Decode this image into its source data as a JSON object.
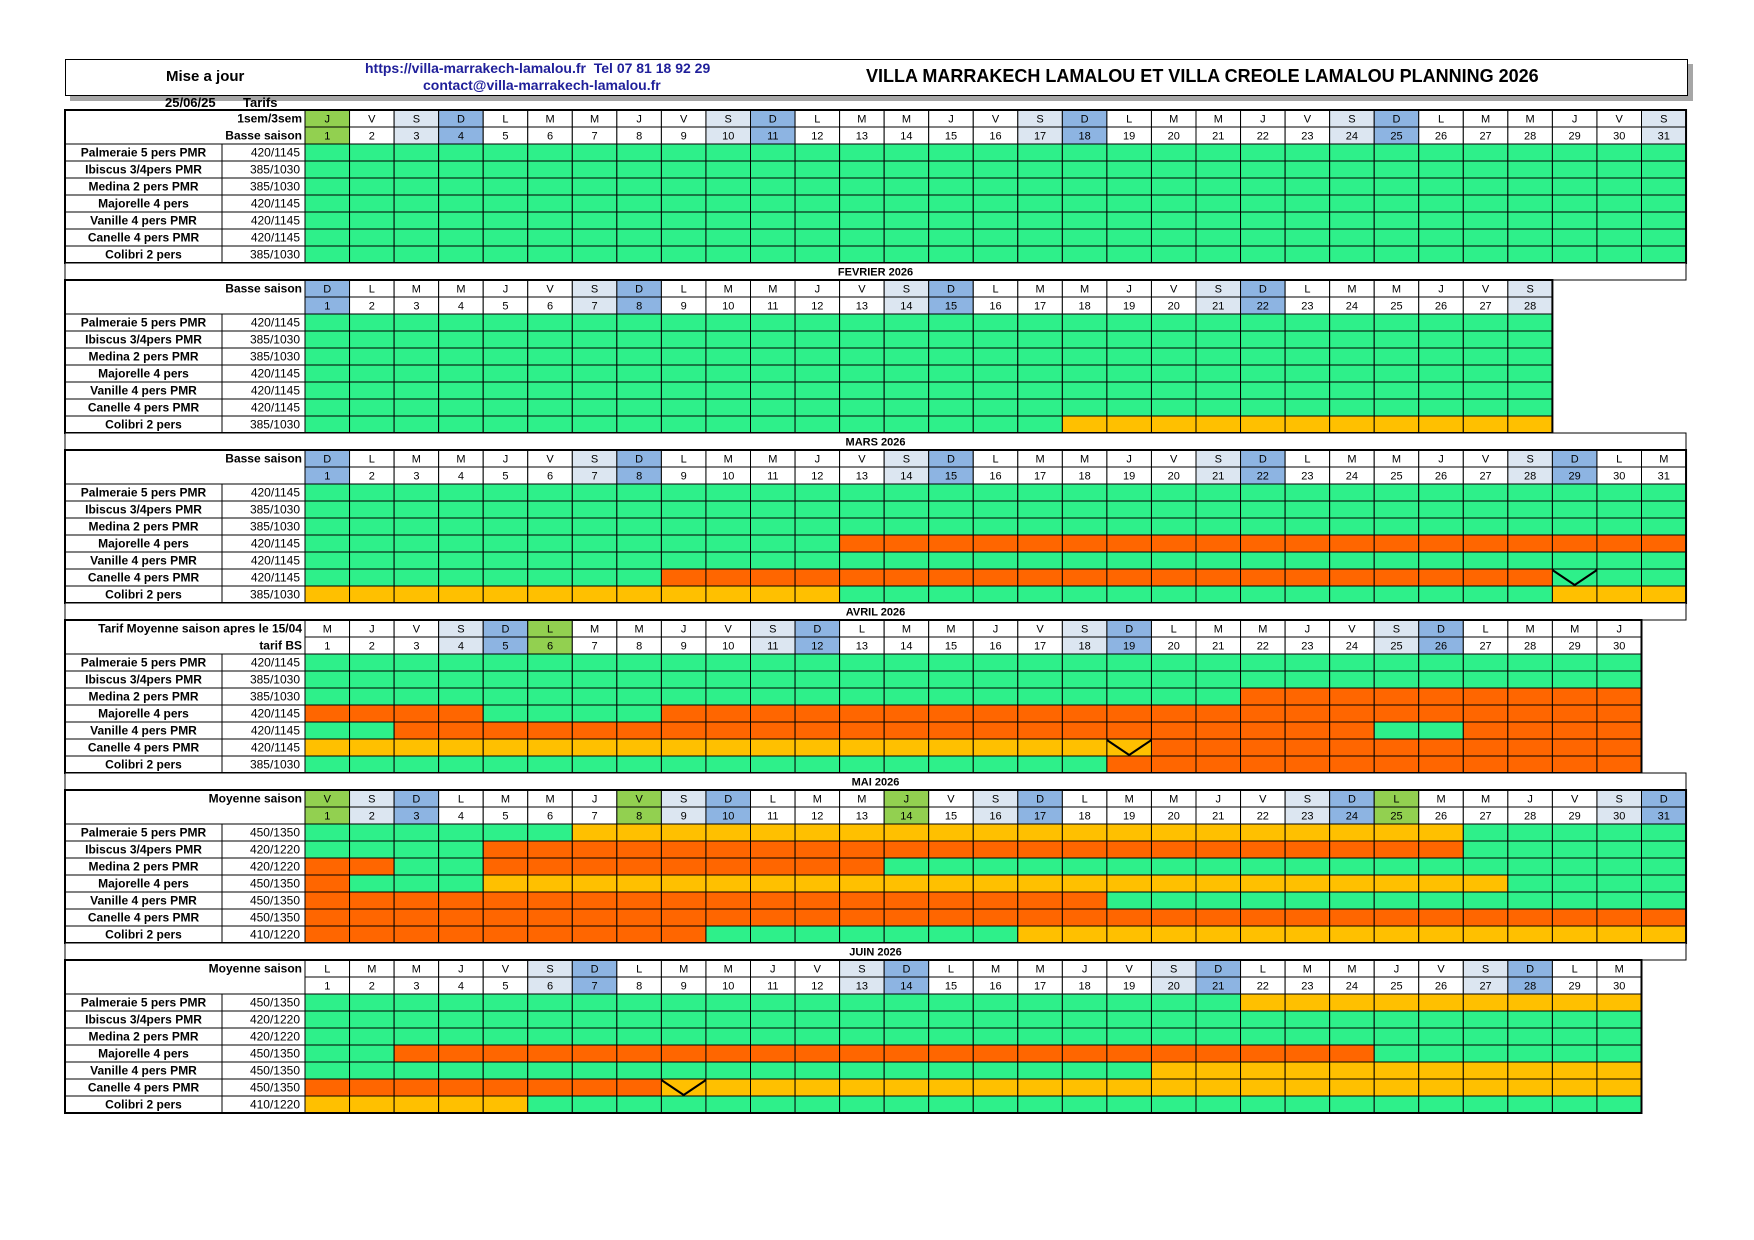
{
  "header": {
    "update_label": "Mise a jour",
    "update_date": "25/06/25",
    "tarifs_label": "Tarifs",
    "url": "https://villa-marrakech-lamalou.fr",
    "tel": "Tel 07 81 18 92 29",
    "email": "contact@villa-marrakech-lamalou.fr",
    "title": "VILLA MARRAKECH LAMALOU ET VILLA CREOLE LAMALOU PLANNING 2026"
  },
  "legend_colors": {
    "free": "#2ef08a",
    "booked_orange": "#ff6600",
    "booked_yellow": "#ffc000",
    "sunday": "#8db4e2",
    "saturday": "#dce6f1",
    "holiday": "#92d050"
  },
  "months": [
    {
      "title": "",
      "label1": "1sem/3sem",
      "label2": "Basse saison",
      "start_weekday": 3,
      "days": 31,
      "holidays": [
        1
      ],
      "rooms": [
        {
          "name": "Palmeraie 5 pers PMR",
          "price": "420/1145",
          "cells": "GGGGGGGGGGGGGGGGGGGGGGGGGGGGGGG"
        },
        {
          "name": "Ibiscus 3/4pers PMR",
          "price": "385/1030",
          "cells": "GGGGGGGGGGGGGGGGGGGGGGGGGGGGGGG"
        },
        {
          "name": "Medina 2 pers PMR",
          "price": "385/1030",
          "cells": "GGGGGGGGGGGGGGGGGGGGGGGGGGGGGGG"
        },
        {
          "name": "Majorelle 4 pers",
          "price": "420/1145",
          "cells": "GGGGGGGGGGGGGGGGGGGGGGGGGGGGGGG"
        },
        {
          "name": "Vanille 4 pers PMR",
          "price": "420/1145",
          "cells": "GGGGGGGGGGGGGGGGGGGGGGGGGGGGGGG"
        },
        {
          "name": "Canelle 4 pers PMR",
          "price": "420/1145",
          "cells": "GGGGGGGGGGGGGGGGGGGGGGGGGGGGGGG"
        },
        {
          "name": "Colibri 2 pers",
          "price": "385/1030",
          "cells": "GGGGGGGGGGGGGGGGGGGGGGGGGGGGGGG"
        }
      ]
    },
    {
      "title": "FEVRIER 2026",
      "label1": "Basse saison",
      "label2": "",
      "start_weekday": 6,
      "days": 28,
      "holidays": [],
      "rooms": [
        {
          "name": "Palmeraie 5 pers PMR",
          "price": "420/1145",
          "cells": "GGGGGGGGGGGGGGGGGGGGGGGGGGGG"
        },
        {
          "name": "Ibiscus 3/4pers PMR",
          "price": "385/1030",
          "cells": "GGGGGGGGGGGGGGGGGGGGGGGGGGGG"
        },
        {
          "name": "Medina 2 pers PMR",
          "price": "385/1030",
          "cells": "GGGGGGGGGGGGGGGGGGGGGGGGGGGG"
        },
        {
          "name": "Majorelle 4 pers",
          "price": "420/1145",
          "cells": "GGGGGGGGGGGGGGGGGGGGGGGGGGGG"
        },
        {
          "name": "Vanille 4 pers PMR",
          "price": "420/1145",
          "cells": "GGGGGGGGGGGGGGGGGGGGGGGGGGGG"
        },
        {
          "name": "Canelle 4 pers PMR",
          "price": "420/1145",
          "cells": "GGGGGGGGGGGGGGGGGGGGGGGGGGGG"
        },
        {
          "name": "Colibri 2 pers",
          "price": "385/1030",
          "cells": "GGGGGGGGGGGGGGGGGYYYYYYYYYYY"
        }
      ]
    },
    {
      "title": "MARS 2026",
      "label1": "Basse saison",
      "label2": "",
      "start_weekday": 6,
      "days": 31,
      "holidays": [],
      "rooms": [
        {
          "name": "Palmeraie 5 pers PMR",
          "price": "420/1145",
          "cells": "GGGGGGGGGGGGGGGGGGGGGGGGGGGGGGG"
        },
        {
          "name": "Ibiscus 3/4pers PMR",
          "price": "385/1030",
          "cells": "GGGGGGGGGGGGGGGGGGGGGGGGGGGGGGG"
        },
        {
          "name": "Medina 2 pers PMR",
          "price": "385/1030",
          "cells": "GGGGGGGGGGGGGGGGGGGGGGGGGGGGGGG"
        },
        {
          "name": "Majorelle 4 pers",
          "price": "420/1145",
          "cells": "GGGGGGGGGGGGOOOOOOOOOOOOOOOOOOO"
        },
        {
          "name": "Vanille 4 pers PMR",
          "price": "420/1145",
          "cells": "GGGGGGGGGGGGGGGGGGGGGGGGGGGGGGG"
        },
        {
          "name": "Canelle 4 pers PMR",
          "price": "420/1145",
          "cells": "GGGGGGGGOOOOOOOOOOOOOOOOOOOOGGG"
        },
        {
          "name": "Colibri 2 pers",
          "price": "385/1030",
          "cells": "YYYYYYYYYYYYGGGGGGGGGGGGGGGGYYY"
        }
      ],
      "changeovers": [
        {
          "row": 5,
          "day": 29
        }
      ]
    },
    {
      "title": "AVRIL 2026",
      "label1": "Tarif Moyenne saison apres le 15/04",
      "label2": "tarif BS",
      "start_weekday": 2,
      "days": 30,
      "holidays": [
        6
      ],
      "rooms": [
        {
          "name": "Palmeraie 5 pers PMR",
          "price": "420/1145",
          "cells": "GGGGGGGGGGGGGGGGGGGGGGGGGGGGGG"
        },
        {
          "name": "Ibiscus 3/4pers PMR",
          "price": "385/1030",
          "cells": "GGGGGGGGGGGGGGGGGGGGGGGGGGGGGG"
        },
        {
          "name": "Medina 2 pers PMR",
          "price": "385/1030",
          "cells": "GGGGGGGGGGGGGGGGGGGGGOOOOOOOOO"
        },
        {
          "name": "Majorelle 4 pers",
          "price": "420/1145",
          "cells": "OOOOGGGGOOOOOOOOOOOOOOOOOOOOOO"
        },
        {
          "name": "Vanille 4 pers PMR",
          "price": "420/1145",
          "cells": "GGOOOOOOOOOOOOOOOOOOOOOOGGOOOO"
        },
        {
          "name": "Canelle 4 pers PMR",
          "price": "420/1145",
          "cells": "YYYYYYYYYYYYYYYYYYYOOOOOOOOOOO"
        },
        {
          "name": "Colibri 2 pers",
          "price": "385/1030",
          "cells": "GGGGGGGGGGGGGGGGGGOOOOOOOOOOOO"
        }
      ],
      "changeovers": [
        {
          "row": 5,
          "day": 19
        }
      ]
    },
    {
      "title": "MAI 2026",
      "label1": "Moyenne saison",
      "label2": "",
      "start_weekday": 4,
      "days": 31,
      "holidays": [
        1,
        8,
        14,
        25
      ],
      "rooms": [
        {
          "name": "Palmeraie 5 pers PMR",
          "price": "450/1350",
          "cells": "GGGGGGYYYYYYYYYYYYYYYYYYYYGGGGG"
        },
        {
          "name": "Ibiscus 3/4pers PMR",
          "price": "420/1220",
          "cells": "GGGGOOOOOOOOOOOOOOOOOOOOOOGGGGG"
        },
        {
          "name": "Medina 2 pers PMR",
          "price": "420/1220",
          "cells": "OOGGOOOOOOOOOGGGGGGGGGGGGGGGGGG"
        },
        {
          "name": "Majorelle 4 pers",
          "price": "450/1350",
          "cells": "OGGGYYYYYYYYYYYYYYYYYYYYYYYGGGG"
        },
        {
          "name": "Vanille 4 pers PMR",
          "price": "450/1350",
          "cells": "OOOOOOOOOOOOOOOOOOGGGGGGGGGGGGG"
        },
        {
          "name": "Canelle 4 pers PMR",
          "price": "450/1350",
          "cells": "OOOOOOOOOOOOOOOOOOOOOOOOOOOOOOO"
        },
        {
          "name": "Colibri 2 pers",
          "price": "410/1220",
          "cells": "OOOOOOOOOGGGGGGGYYYYYYYYYYYYYYY"
        }
      ]
    },
    {
      "title": "JUIN 2026",
      "label1": "Moyenne saison",
      "label2": "",
      "start_weekday": 0,
      "days": 30,
      "holidays": [],
      "rooms": [
        {
          "name": "Palmeraie 5 pers PMR",
          "price": "450/1350",
          "cells": "GGGGGGGGGGGGGGGGGGGGGYYYYYYYYY"
        },
        {
          "name": "Ibiscus 3/4pers PMR",
          "price": "420/1220",
          "cells": "GGGGGGGGGGGGGGGGGGGGGGGGGGGGGG"
        },
        {
          "name": "Medina 2 pers PMR",
          "price": "420/1220",
          "cells": "GGGGGGGGGGGGGGGGGGGGGGGGGGGGGG"
        },
        {
          "name": "Majorelle 4 pers",
          "price": "450/1350",
          "cells": "GGOOOOOOOOOOOOOOOOOOOOOOGGGGGG"
        },
        {
          "name": "Vanille 4 pers PMR",
          "price": "450/1350",
          "cells": "GGGGGGGGGGGGGGGGGGGYYYYYYYYYYY"
        },
        {
          "name": "Canelle 4 pers PMR",
          "price": "450/1350",
          "cells": "OOOOOOOOYYYYYYYYYYYYYYYYYYYYYY"
        },
        {
          "name": "Colibri 2 pers",
          "price": "410/1220",
          "cells": "YYYYYGGGGGGGGGGGGGGGGGGGGGGGGG"
        }
      ],
      "changeovers": [
        {
          "row": 5,
          "day": 9
        }
      ]
    }
  ]
}
